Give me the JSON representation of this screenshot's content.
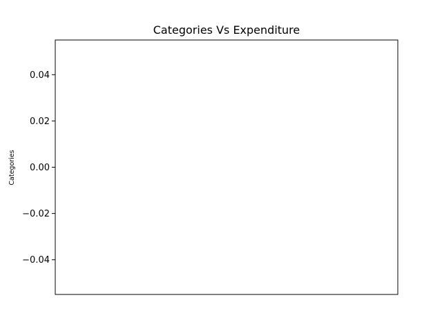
{
  "chart_data": {
    "type": "bar",
    "title": "Categories Vs Expenditure",
    "xlabel": "",
    "ylabel": "Categories",
    "categories": [],
    "values": [],
    "ylim": [
      -0.055,
      0.055
    ],
    "yticks": [
      {
        "value": 0.04,
        "label": "0.04"
      },
      {
        "value": 0.02,
        "label": "0.02"
      },
      {
        "value": 0.0,
        "label": "0.00"
      },
      {
        "value": -0.02,
        "label": "−0.02"
      },
      {
        "value": -0.04,
        "label": "−0.04"
      }
    ],
    "xticks": [],
    "grid": false,
    "legend": "none"
  }
}
